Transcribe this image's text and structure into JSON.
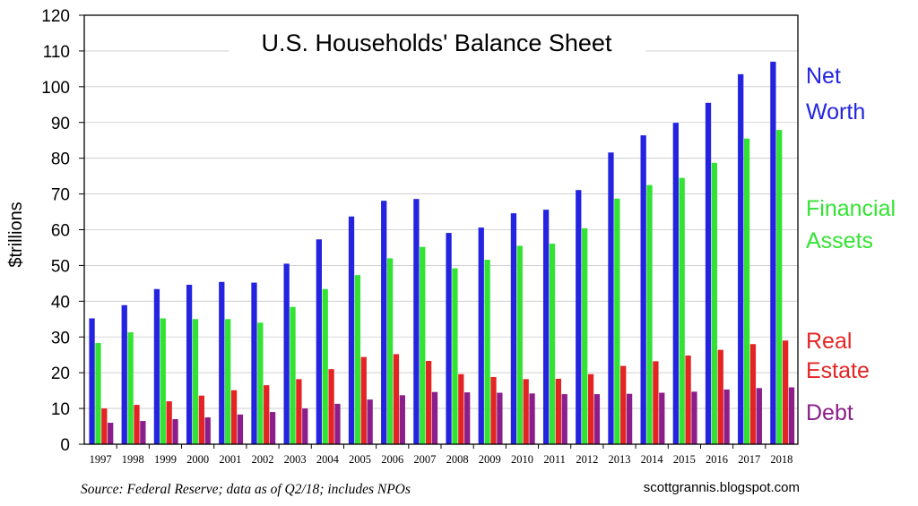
{
  "chart_data": {
    "type": "bar",
    "title": "U.S. Households' Balance Sheet",
    "ylabel": "$trillions",
    "ylim": [
      0,
      120
    ],
    "yticks": [
      0,
      10,
      20,
      30,
      40,
      50,
      60,
      70,
      80,
      90,
      100,
      110,
      120
    ],
    "grid": true,
    "legend_position": "right",
    "categories": [
      "1997",
      "1998",
      "1999",
      "2000",
      "2001",
      "2002",
      "2003",
      "2004",
      "2005",
      "2006",
      "2007",
      "2008",
      "2009",
      "2010",
      "2011",
      "2012",
      "2013",
      "2014",
      "2015",
      "2016",
      "2017",
      "2018"
    ],
    "series": [
      {
        "name": "Net Worth",
        "legend_lines": [
          "Net",
          "Worth"
        ],
        "color": "#2323e0",
        "values": [
          35.2,
          38.9,
          43.4,
          44.6,
          45.4,
          45.2,
          50.5,
          57.3,
          63.7,
          68.1,
          68.6,
          59.1,
          60.6,
          64.6,
          65.6,
          71.1,
          81.6,
          86.4,
          89.9,
          95.5,
          103.5,
          107.0
        ]
      },
      {
        "name": "Financial Assets",
        "legend_lines": [
          "Financial",
          "Assets"
        ],
        "color": "#33e333",
        "values": [
          28.3,
          31.3,
          35.2,
          35.0,
          35.0,
          34.0,
          38.4,
          43.4,
          47.3,
          52.0,
          55.2,
          49.2,
          51.6,
          55.5,
          56.1,
          60.4,
          68.7,
          72.5,
          74.5,
          78.7,
          85.5,
          87.9
        ]
      },
      {
        "name": "Real Estate",
        "legend_lines": [
          "Real",
          "Estate"
        ],
        "color": "#e42424",
        "values": [
          10.0,
          11.0,
          12.0,
          13.6,
          15.1,
          16.5,
          18.2,
          21.0,
          24.4,
          25.2,
          23.3,
          19.6,
          18.8,
          18.2,
          18.3,
          19.6,
          21.9,
          23.2,
          24.8,
          26.4,
          28.0,
          29.0
        ]
      },
      {
        "name": "Debt",
        "legend_lines": [
          "Debt"
        ],
        "color": "#8b1e8b",
        "values": [
          6.0,
          6.5,
          7.0,
          7.5,
          8.3,
          9.0,
          10.0,
          11.3,
          12.5,
          13.7,
          14.6,
          14.5,
          14.4,
          14.2,
          14.0,
          14.0,
          14.1,
          14.4,
          14.7,
          15.3,
          15.7,
          15.9
        ]
      }
    ]
  },
  "footer": {
    "source": "Source: Federal Reserve; data as of Q2/18; includes NPOs",
    "credit": "scottgrannis.blogspot.com"
  }
}
